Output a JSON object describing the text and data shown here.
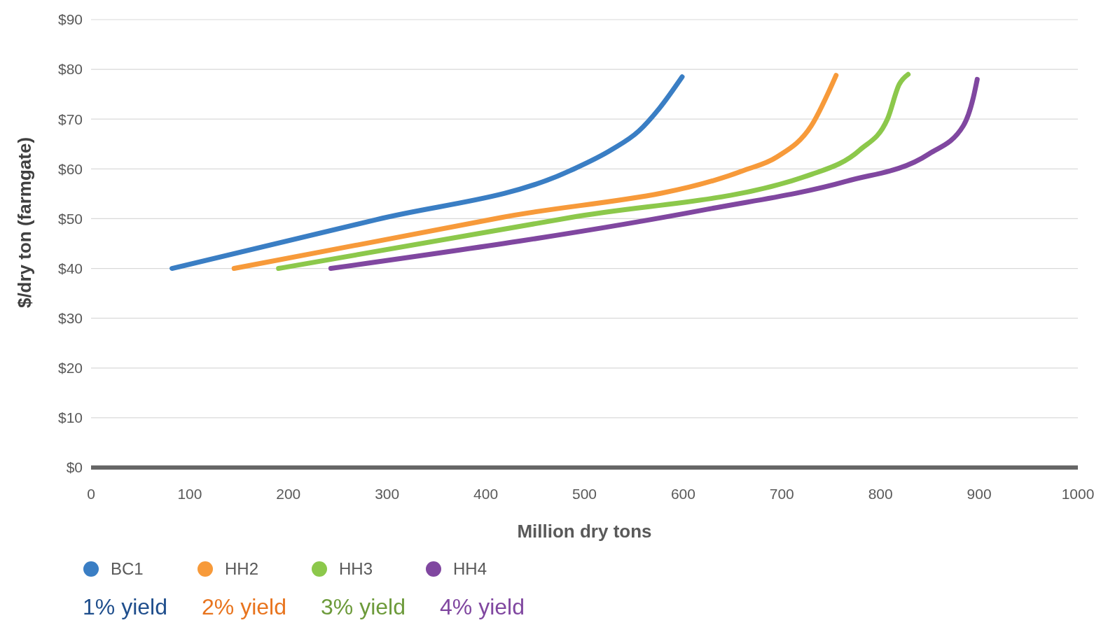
{
  "chart_data": {
    "type": "line",
    "xlabel": "Million dry tons",
    "ylabel": "$/dry ton (farmgate)",
    "xlim": [
      0,
      1000
    ],
    "xticks": [
      0,
      100,
      200,
      300,
      400,
      500,
      600,
      700,
      800,
      900,
      1000
    ],
    "ylim": [
      0,
      90
    ],
    "yticks": [
      {
        "value": 0,
        "label": "$0"
      },
      {
        "value": 10,
        "label": "$10"
      },
      {
        "value": 20,
        "label": "$20"
      },
      {
        "value": 30,
        "label": "$30"
      },
      {
        "value": 40,
        "label": "$40"
      },
      {
        "value": 50,
        "label": "$50"
      },
      {
        "value": 60,
        "label": "$60"
      },
      {
        "value": 70,
        "label": "$70"
      },
      {
        "value": 80,
        "label": "$80"
      },
      {
        "value": 90,
        "label": "$90"
      }
    ],
    "grid": "y",
    "legend": "bottom",
    "marker": "none",
    "line_style": "solid",
    "series": [
      {
        "name": "BC1",
        "color": "#3a7ec4",
        "x": [
          82,
          289,
          485,
          527,
          555,
          576,
          599
        ],
        "values": [
          40,
          49.8,
          59.6,
          63.8,
          67.6,
          72.2,
          78.5
        ]
      },
      {
        "name": "HH2",
        "color": "#f79a3a",
        "x": [
          145,
          415,
          660,
          695,
          730,
          755
        ],
        "values": [
          40,
          50.2,
          59.6,
          62.4,
          68.7,
          78.8
        ]
      },
      {
        "name": "HH3",
        "color": "#8cc84b",
        "x": [
          190,
          485,
          730,
          779,
          807,
          819,
          828
        ],
        "values": [
          40,
          50.2,
          58.9,
          63.8,
          70,
          77,
          79
        ]
      },
      {
        "name": "HH4",
        "color": "#8047a0",
        "x": [
          243,
          625,
          765,
          849,
          884,
          894,
          898
        ],
        "values": [
          40,
          51.9,
          57.5,
          63,
          68.7,
          74.3,
          78
        ]
      }
    ],
    "annotations": [
      "1% yield",
      "2% yield",
      "3% yield",
      "4% yield"
    ]
  }
}
